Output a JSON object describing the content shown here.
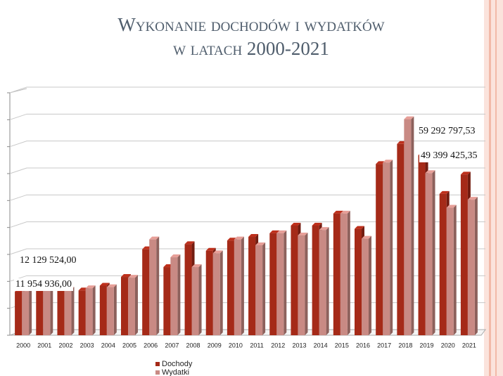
{
  "chart_data": {
    "type": "bar3d",
    "title": [
      "Wykonanie dochodów i wydatków",
      "w latach 2000-2021"
    ],
    "categories": [
      "2000",
      "2001",
      "2002",
      "2003",
      "2004",
      "2005",
      "2006",
      "2007",
      "2008",
      "2009",
      "2010",
      "2011",
      "2012",
      "2013",
      "2014",
      "2015",
      "2016",
      "2017",
      "2018",
      "2019",
      "2020",
      "2021"
    ],
    "series": [
      {
        "name": "Dochody",
        "color": "#a52a18",
        "values": [
          11954936.0,
          12300000,
          12200000,
          12300000,
          13600000,
          16000000,
          23600000,
          18700000,
          25000000,
          23200000,
          26000000,
          27000000,
          28000000,
          30100000,
          30100000,
          33400000,
          29200000,
          47000000,
          52500000,
          49399425.35,
          38800000,
          44100000
        ],
        "value_labels": [
          "11 954 936,00",
          null,
          null,
          null,
          null,
          null,
          null,
          null,
          null,
          null,
          null,
          null,
          null,
          null,
          null,
          null,
          null,
          null,
          null,
          "49 399 425,35",
          null,
          null
        ]
      },
      {
        "name": "Wydatki",
        "color": "#c98a84",
        "values": [
          12129524.0,
          12500000,
          12500000,
          12900000,
          13200000,
          15800000,
          26300000,
          21400000,
          18700000,
          22500000,
          26300000,
          24700000,
          28000000,
          27400000,
          28900000,
          33400000,
          26500000,
          47400000,
          59292797.53,
          44500000,
          35000000,
          37200000
        ],
        "value_labels": [
          "12 129 524,00",
          null,
          null,
          null,
          null,
          null,
          null,
          null,
          null,
          null,
          null,
          null,
          null,
          null,
          null,
          null,
          null,
          null,
          "59 292 797,53",
          null,
          null,
          null
        ]
      }
    ],
    "ylim": [
      0,
      65000000
    ],
    "grid": true,
    "legend": "bottom"
  }
}
